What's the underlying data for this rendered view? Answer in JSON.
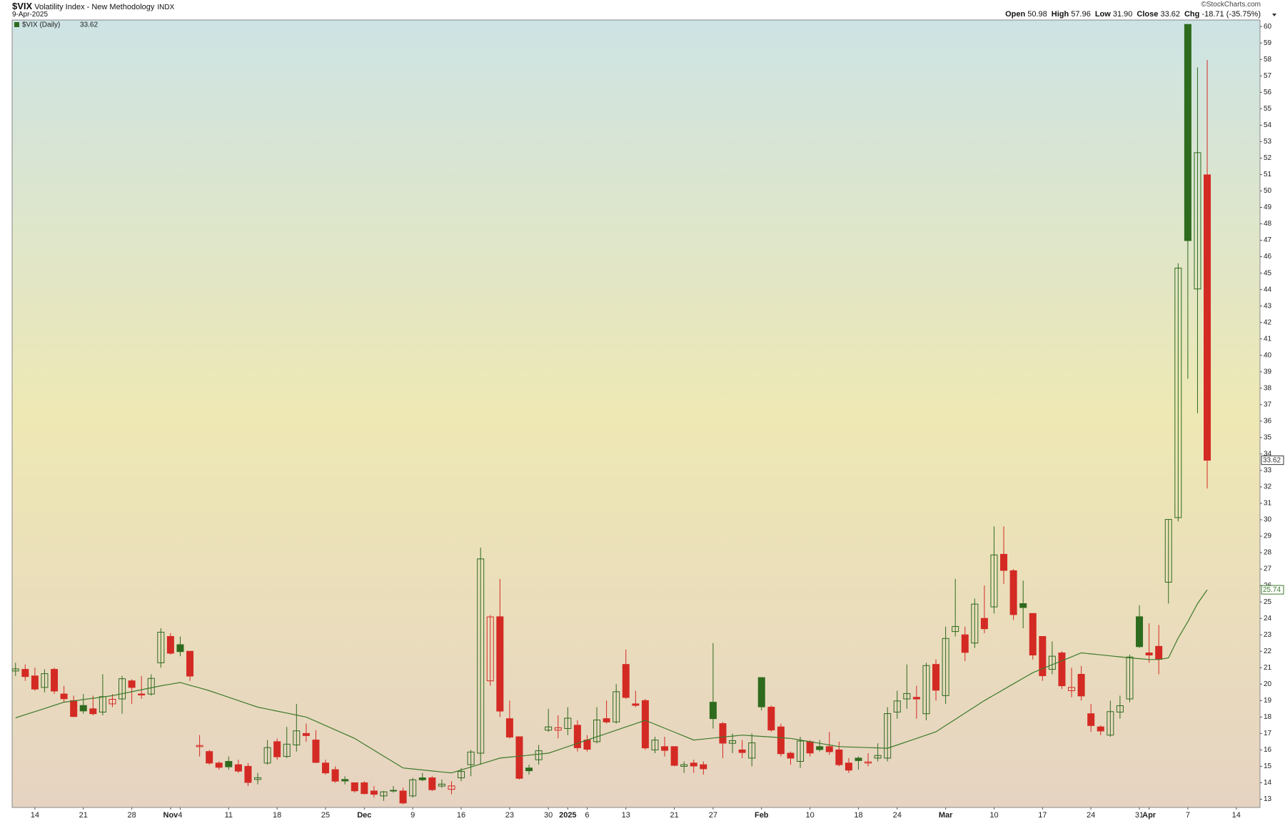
{
  "header": {
    "symbol": "$VIX",
    "title": "Volatility Index - New Methodology",
    "exchange": "INDX",
    "date": "9-Apr-2025",
    "source": "©StockCharts.com",
    "quote": [
      {
        "name": "Open",
        "value": 50.98
      },
      {
        "name": "High",
        "value": 57.96
      },
      {
        "name": "Low",
        "value": 31.9,
        "value_label": "31.90"
      },
      {
        "name": "Close",
        "value": 33.62
      },
      {
        "name": "Chg",
        "value": -18.71,
        "percent": -35.75,
        "percent_label": "(-35.75%)"
      }
    ]
  },
  "chart_data": {
    "type": "candlestick",
    "series": [
      {
        "name": "$VIX (Daily)",
        "up_color": "#2e6b1e",
        "down_color": "#d42a24",
        "open": [
          20.8,
          20.9,
          20.5,
          19.8,
          20.9,
          19.4,
          19.0,
          18.7,
          18.5,
          18.3,
          18.8,
          19.1,
          20.2,
          19.4,
          19.4,
          21.3,
          22.9,
          22.4,
          22.0,
          16.2,
          15.9,
          15.2,
          15.3,
          15.1,
          15.0,
          14.2,
          15.2,
          16.5,
          15.6,
          16.3,
          17.0,
          16.6,
          15.2,
          14.8,
          14.2,
          14.0,
          14.0,
          13.5,
          13.2,
          13.5,
          13.5,
          13.2,
          14.3,
          14.3,
          13.8,
          13.6,
          14.3,
          15.1,
          15.8,
          20.2,
          24.1,
          17.9,
          16.8,
          14.9,
          15.4,
          17.2,
          17.2,
          17.3,
          17.5,
          16.6,
          16.5,
          17.9,
          17.7,
          21.2,
          18.8,
          19.0,
          16.0,
          16.2,
          16.2,
          15.0,
          15.2,
          15.1,
          18.9,
          17.6,
          16.4,
          16.0,
          15.5,
          20.4,
          18.6,
          17.4,
          15.8,
          15.3,
          16.5,
          16.2,
          16.2,
          16.0,
          15.2,
          15.5,
          15.2,
          15.5,
          15.5,
          18.3,
          19.1,
          19.2,
          18.2,
          21.2,
          19.3,
          23.2,
          23.0,
          22.5,
          24.0,
          24.7,
          27.9,
          26.9,
          24.9,
          24.3,
          22.9,
          20.9,
          21.9,
          19.6,
          20.6,
          18.2,
          17.4,
          16.9,
          18.3,
          19.1,
          24.1,
          21.9,
          22.3,
          26.2,
          30.13,
          60.13,
          44.04,
          50.98
        ],
        "high": [
          21.3,
          21.2,
          21.0,
          20.9,
          21.0,
          19.9,
          19.3,
          19.4,
          19.3,
          20.6,
          19.4,
          20.5,
          20.3,
          20.5,
          20.6,
          23.4,
          23.1,
          22.9,
          22.0,
          16.9,
          16.0,
          15.3,
          15.6,
          15.4,
          15.2,
          14.6,
          16.6,
          16.7,
          17.4,
          18.8,
          17.6,
          17.2,
          15.4,
          15.0,
          14.4,
          14.0,
          14.1,
          13.8,
          13.5,
          13.8,
          13.7,
          14.3,
          14.6,
          14.4,
          14.2,
          14.1,
          14.9,
          16.0,
          28.3,
          24.2,
          26.4,
          19.0,
          16.8,
          15.1,
          16.3,
          18.5,
          18.1,
          18.6,
          17.8,
          16.9,
          18.6,
          19.0,
          20.0,
          22.1,
          19.6,
          19.1,
          16.8,
          16.8,
          16.2,
          15.3,
          15.4,
          15.3,
          22.5,
          17.7,
          17.0,
          16.6,
          17.0,
          20.4,
          18.7,
          17.6,
          15.9,
          16.8,
          16.6,
          16.6,
          17.1,
          16.5,
          15.5,
          15.6,
          15.8,
          16.4,
          18.6,
          19.6,
          21.2,
          19.9,
          21.3,
          21.5,
          23.5,
          26.4,
          23.5,
          25.2,
          26.0,
          29.6,
          29.6,
          27.0,
          26.3,
          24.3,
          22.9,
          22.6,
          22.0,
          21.0,
          21.1,
          18.8,
          17.5,
          19.0,
          19.3,
          21.8,
          24.8,
          23.7,
          23.6,
          30.02,
          45.6,
          60.13,
          57.52,
          57.96
        ],
        "low": [
          20.5,
          20.2,
          19.6,
          19.5,
          19.4,
          18.9,
          18.0,
          18.2,
          18.1,
          18.1,
          18.6,
          18.2,
          18.8,
          19.1,
          19.3,
          21.0,
          21.8,
          21.7,
          20.2,
          15.6,
          15.1,
          14.8,
          14.8,
          14.6,
          13.8,
          13.9,
          15.1,
          15.4,
          15.5,
          15.9,
          16.5,
          15.2,
          14.5,
          14.0,
          13.9,
          13.4,
          13.3,
          13.1,
          12.9,
          13.4,
          12.7,
          13.1,
          14.1,
          13.5,
          13.7,
          13.3,
          14.1,
          14.4,
          15.1,
          19.9,
          18.0,
          16.7,
          14.2,
          14.5,
          15.1,
          17.1,
          16.7,
          16.9,
          15.9,
          15.9,
          16.4,
          17.6,
          17.6,
          19.1,
          18.6,
          16.0,
          15.8,
          15.6,
          15.0,
          14.6,
          14.6,
          14.5,
          17.3,
          15.5,
          15.8,
          15.5,
          15.0,
          18.4,
          17.1,
          15.6,
          15.1,
          14.9,
          15.6,
          15.9,
          15.7,
          15.0,
          14.6,
          14.8,
          15.0,
          15.3,
          15.3,
          17.9,
          18.5,
          17.9,
          17.8,
          19.0,
          18.8,
          22.9,
          21.4,
          22.2,
          23.1,
          24.3,
          26.1,
          23.9,
          23.4,
          21.5,
          20.2,
          20.6,
          19.7,
          19.2,
          19.0,
          17.1,
          16.9,
          16.8,
          17.9,
          18.9,
          22.2,
          21.3,
          20.6,
          24.9,
          29.9,
          38.58,
          36.48,
          31.9
        ],
        "close": [
          20.93,
          20.46,
          19.7,
          20.64,
          19.58,
          19.11,
          18.03,
          18.37,
          18.2,
          19.24,
          19.08,
          20.33,
          19.8,
          19.34,
          20.35,
          23.16,
          21.88,
          21.98,
          20.49,
          16.27,
          15.2,
          14.94,
          14.97,
          14.71,
          14.02,
          14.31,
          16.14,
          15.58,
          16.35,
          17.16,
          16.87,
          15.24,
          14.6,
          14.1,
          14.11,
          13.51,
          13.34,
          13.3,
          13.45,
          13.54,
          12.77,
          14.18,
          14.18,
          13.58,
          13.92,
          13.81,
          14.69,
          15.87,
          27.62,
          24.09,
          18.36,
          16.78,
          14.27,
          14.73,
          15.95,
          17.4,
          17.35,
          17.93,
          16.13,
          16.04,
          17.82,
          17.7,
          19.54,
          19.19,
          18.71,
          16.12,
          16.6,
          15.97,
          15.06,
          15.1,
          15.02,
          14.85,
          17.9,
          16.41,
          16.56,
          15.84,
          16.43,
          18.62,
          17.21,
          15.77,
          15.5,
          16.54,
          15.81,
          16.02,
          15.89,
          15.1,
          14.77,
          15.35,
          15.27,
          15.66,
          18.21,
          18.98,
          19.43,
          19.1,
          21.13,
          19.63,
          22.78,
          23.51,
          21.93,
          24.87,
          23.37,
          27.86,
          26.92,
          24.23,
          24.66,
          21.77,
          20.51,
          21.7,
          19.9,
          19.8,
          19.28,
          17.48,
          17.15,
          18.33,
          18.69,
          21.65,
          22.28,
          21.77,
          21.51,
          30.02,
          45.31,
          46.98,
          52.33,
          33.62
        ]
      },
      {
        "color": "#3d7a2c",
        "values": [
          17.95,
          18.14,
          18.33,
          18.52,
          18.71,
          18.9,
          18.98,
          19.06,
          19.14,
          19.22,
          19.3,
          19.42,
          19.54,
          19.66,
          19.78,
          19.9,
          20.0,
          20.1,
          19.93,
          19.77,
          19.6,
          19.4,
          19.2,
          19.0,
          18.8,
          18.6,
          18.48,
          18.36,
          18.24,
          18.12,
          18.0,
          17.74,
          17.48,
          17.22,
          16.96,
          16.7,
          16.34,
          15.98,
          15.62,
          15.26,
          14.9,
          14.84,
          14.78,
          14.72,
          14.66,
          14.6,
          14.78,
          14.96,
          15.14,
          15.32,
          15.5,
          15.56,
          15.62,
          15.68,
          15.74,
          15.8,
          16.0,
          16.2,
          16.4,
          16.6,
          16.8,
          17.0,
          17.2,
          17.4,
          17.6,
          17.8,
          17.56,
          17.32,
          17.08,
          16.84,
          16.6,
          16.66,
          16.72,
          16.78,
          16.84,
          16.9,
          16.86,
          16.82,
          16.78,
          16.74,
          16.7,
          16.6,
          16.5,
          16.4,
          16.3,
          16.2,
          16.18,
          16.16,
          16.14,
          16.12,
          16.1,
          16.3,
          16.5,
          16.7,
          16.9,
          17.1,
          17.48,
          17.86,
          18.24,
          18.62,
          19.0,
          19.34,
          19.68,
          20.02,
          20.36,
          20.7,
          20.94,
          21.18,
          21.42,
          21.66,
          21.9,
          21.84,
          21.78,
          21.72,
          21.66,
          21.6,
          21.55,
          21.5,
          21.5,
          21.6,
          22.8,
          23.8,
          24.9,
          25.74
        ]
      }
    ],
    "xlim": [
      -0.35,
      128.45
    ],
    "xticks": [
      {
        "value": 2,
        "label": "14"
      },
      {
        "value": 7,
        "label": "21"
      },
      {
        "value": 12,
        "label": "28"
      },
      {
        "value": 16,
        "label": "Nov",
        "bold": true
      },
      {
        "value": 17,
        "label": "4"
      },
      {
        "value": 22,
        "label": "11"
      },
      {
        "value": 27,
        "label": "18"
      },
      {
        "value": 32,
        "label": "25"
      },
      {
        "value": 36,
        "label": "Dec",
        "bold": true
      },
      {
        "value": 41,
        "label": "9"
      },
      {
        "value": 46,
        "label": "16"
      },
      {
        "value": 51,
        "label": "23"
      },
      {
        "value": 55,
        "label": "30"
      },
      {
        "value": 57,
        "label": "2025",
        "bold": true
      },
      {
        "value": 59,
        "label": "6"
      },
      {
        "value": 63,
        "label": "13"
      },
      {
        "value": 68,
        "label": "21"
      },
      {
        "value": 72,
        "label": "27"
      },
      {
        "value": 77,
        "label": "Feb",
        "bold": true
      },
      {
        "value": 82,
        "label": "10"
      },
      {
        "value": 87,
        "label": "18"
      },
      {
        "value": 91,
        "label": "24"
      },
      {
        "value": 96,
        "label": "Mar",
        "bold": true
      },
      {
        "value": 101,
        "label": "10"
      },
      {
        "value": 106,
        "label": "17"
      },
      {
        "value": 111,
        "label": "24"
      },
      {
        "value": 116,
        "label": "31"
      },
      {
        "value": 117,
        "label": "Apr",
        "bold": true
      },
      {
        "value": 121,
        "label": "7"
      },
      {
        "value": 126,
        "label": "14"
      }
    ],
    "ylim": [
      12.5,
      60.4
    ],
    "yticks": [
      13,
      14,
      15,
      16,
      17,
      18,
      19,
      20,
      21,
      22,
      23,
      24,
      25,
      26,
      27,
      28,
      29,
      30,
      31,
      32,
      33,
      34,
      35,
      36,
      37,
      38,
      39,
      40,
      41,
      42,
      43,
      44,
      45,
      46,
      47,
      48,
      49,
      50,
      51,
      52,
      53,
      54,
      55,
      56,
      57,
      58,
      59,
      60
    ],
    "grid": false
  }
}
